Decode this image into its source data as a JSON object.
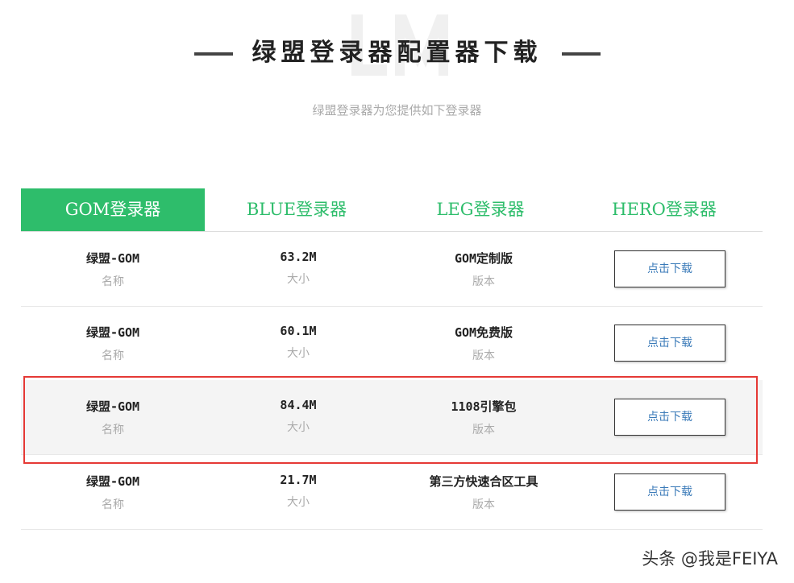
{
  "header": {
    "watermark": "LM",
    "title": "绿盟登录器配置器下载",
    "subtitle": "绿盟登录器为您提供如下登录器"
  },
  "tabs": [
    {
      "label": "GOM登录器",
      "active": true
    },
    {
      "label": "BLUE登录器"
    },
    {
      "label": "LEG登录器"
    },
    {
      "label": "HERO登录器"
    }
  ],
  "labels": {
    "name": "名称",
    "size": "大小",
    "version": "版本",
    "download": "点击下载"
  },
  "rows": [
    {
      "name": "绿盟-GOM",
      "size": "63.2M",
      "version": "GOM定制版"
    },
    {
      "name": "绿盟-GOM",
      "size": "60.1M",
      "version": "GOM免费版"
    },
    {
      "name": "绿盟-GOM",
      "size": "84.4M",
      "version": "1108引擎包",
      "highlighted": true
    },
    {
      "name": "绿盟-GOM",
      "size": "21.7M",
      "version": "第三方快速合区工具"
    }
  ],
  "footer_watermark": "头条 @我是FEIYA",
  "colors": {
    "accent": "#2ebd6b",
    "highlight": "#e53935"
  }
}
